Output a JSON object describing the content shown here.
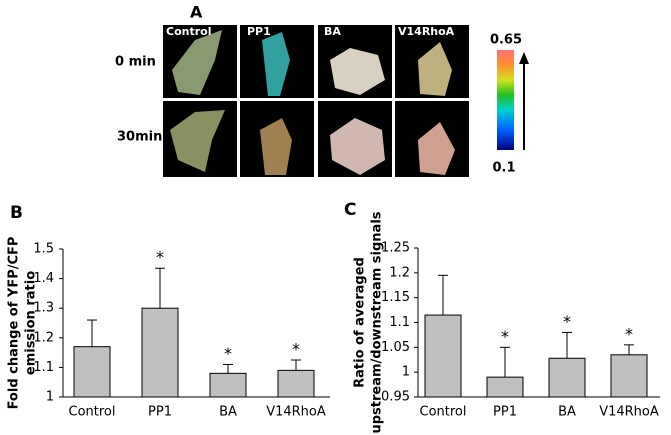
{
  "panel_a": {
    "panel_label": "A",
    "rows": [
      "0 min",
      "30min"
    ],
    "columns": [
      "Control",
      "PP1",
      "BA",
      "V14RhoA"
    ],
    "colorbar": {
      "max": 0.65,
      "min": 0.1
    }
  },
  "chart_data": [
    {
      "type": "bar",
      "panel_label": "B",
      "ylabel": [
        "Fold change of YFP/CFP",
        "emission ratio"
      ],
      "categories": [
        "Control",
        "PP1",
        "BA",
        "V14RhoA"
      ],
      "values": [
        1.17,
        1.3,
        1.08,
        1.09
      ],
      "errors": [
        0.09,
        0.135,
        0.03,
        0.035
      ],
      "annotations": [
        null,
        "*",
        "*",
        "*"
      ],
      "color": "#c0c0c0",
      "ylim": [
        1,
        1.5
      ],
      "yticks": [
        1,
        1.1,
        1.2,
        1.3,
        1.4,
        1.5
      ]
    },
    {
      "type": "bar",
      "panel_label": "C",
      "ylabel": [
        "Ratio of averaged",
        "upstream/downstream signals"
      ],
      "categories": [
        "Control",
        "PP1",
        "BA",
        "V14RhoA"
      ],
      "values": [
        1.115,
        0.99,
        1.028,
        1.035
      ],
      "errors": [
        0.08,
        0.06,
        0.052,
        0.02
      ],
      "annotations": [
        null,
        "*",
        "*",
        "*"
      ],
      "color": "#c0c0c0",
      "ylim": [
        0.95,
        1.25
      ],
      "yticks": [
        0.95,
        1,
        1.05,
        1.1,
        1.15,
        1.2,
        1.25
      ]
    }
  ]
}
